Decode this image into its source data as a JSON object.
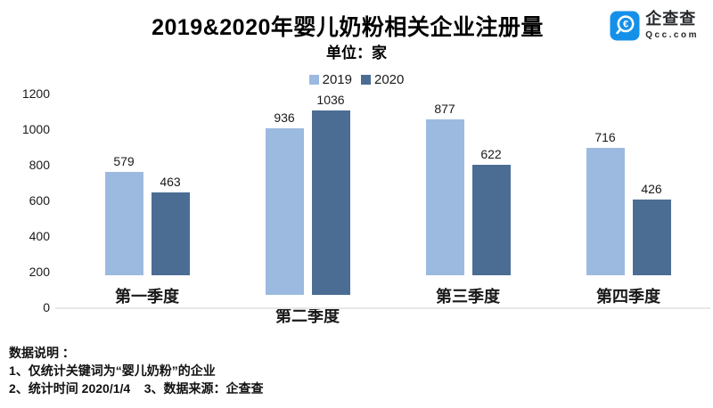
{
  "header": {
    "title": "2019&2020年婴儿奶粉相关企业注册量",
    "subtitle": "单位：家"
  },
  "logo": {
    "brand": "企查查",
    "domain": "Qcc.com",
    "icon_color": "#1590e9",
    "icon_glyph": "€"
  },
  "chart_data": {
    "type": "bar",
    "title": "2019&2020年婴儿奶粉相关企业注册量",
    "unit_label": "单位：家",
    "categories": [
      "第一季度",
      "第二季度",
      "第三季度",
      "第四季度"
    ],
    "series": [
      {
        "name": "2019",
        "color": "#9cbae0",
        "values": [
          579,
          936,
          877,
          716
        ]
      },
      {
        "name": "2020",
        "color": "#4b6d94",
        "values": [
          463,
          1036,
          622,
          426
        ]
      }
    ],
    "ylim": [
      0,
      1200
    ],
    "yticks": [
      0,
      200,
      400,
      600,
      800,
      1000,
      1200
    ],
    "grid": false,
    "legend_position": "top-center",
    "baseline_color": "#e8e8e8"
  },
  "footer": {
    "lines": [
      "数据说明 ：",
      "1、仅统计关键词为“婴儿奶粉”的企业",
      "2、统计时间 2020/1/4    3、数据来源：企查查"
    ]
  }
}
